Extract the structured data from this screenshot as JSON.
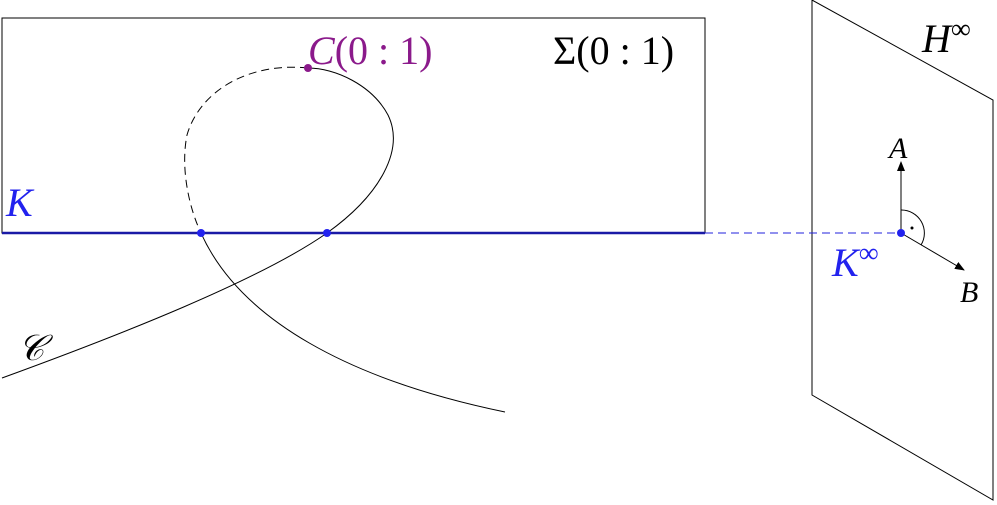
{
  "labels": {
    "point": {
      "base": "C",
      "args": "(0 : 1)"
    },
    "plane": {
      "base": "Σ",
      "args": "(0 : 1)"
    },
    "line": "K",
    "line_infinity": {
      "base": "K",
      "sup": "∞"
    },
    "hyperplane": {
      "base": "H",
      "sup": "∞"
    },
    "vector_a": "A",
    "vector_b": "B",
    "curve": "𝒞"
  }
}
